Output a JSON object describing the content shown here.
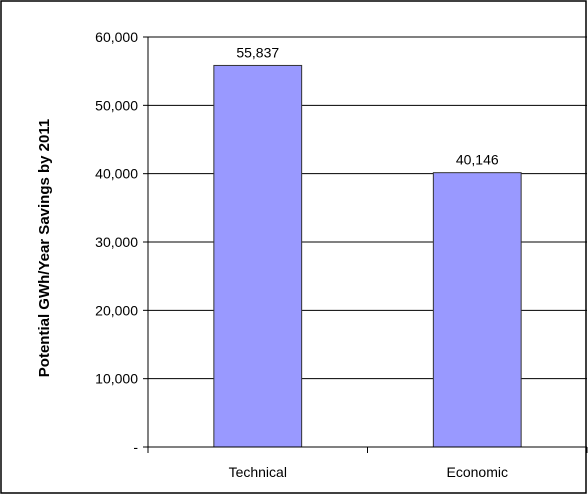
{
  "chart_data": {
    "type": "bar",
    "title": "",
    "xlabel": "",
    "ylabel": "Potential GWh/Year Savings by 2011",
    "categories": [
      "Technical",
      "Economic"
    ],
    "values": [
      55837,
      40146
    ],
    "data_labels": [
      "55,837",
      "40,146"
    ],
    "ylim": [
      0,
      60000
    ],
    "y_ticks": [
      0,
      10000,
      20000,
      30000,
      40000,
      50000,
      60000
    ],
    "y_tick_labels": [
      "-",
      "10,000",
      "20,000",
      "30,000",
      "40,000",
      "50,000",
      "60,000"
    ],
    "grid": true,
    "legend": "none",
    "bar_color": "#9999ff",
    "bar_stroke": "#333333"
  }
}
